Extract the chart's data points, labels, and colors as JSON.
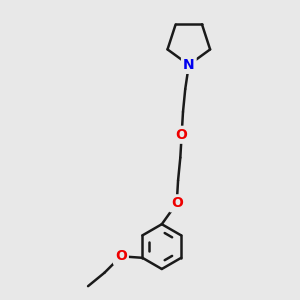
{
  "background_color": "#e8e8e8",
  "bond_color": "#1a1a1a",
  "nitrogen_color": "#0000ee",
  "oxygen_color": "#ee0000",
  "line_width": 1.8,
  "figsize": [
    3.0,
    3.0
  ],
  "dpi": 100,
  "xlim": [
    0,
    10
  ],
  "ylim": [
    0,
    10
  ]
}
